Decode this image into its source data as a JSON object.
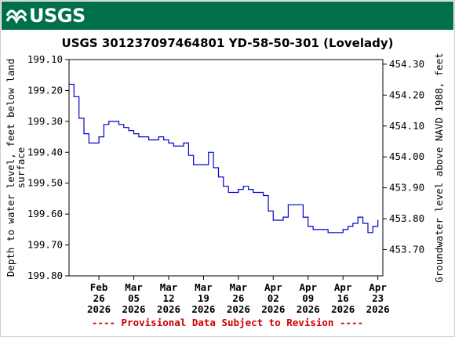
{
  "banner": {
    "logo_text": "USGS",
    "background": "#00704a"
  },
  "chart_data": {
    "type": "line",
    "title": "USGS 301237097464801 YD-58-50-301 (Lovelady)",
    "ylabel": "Depth to water level, feet below land surface",
    "ylabel_lines": [
      "Depth to water level, feet below land",
      "surface"
    ],
    "y2label": "Groundwater level above NAVD 1988, feet",
    "ylim": [
      199.1,
      199.8
    ],
    "y_inverted": true,
    "y_ticks": [
      "199.10",
      "199.20",
      "199.30",
      "199.40",
      "199.50",
      "199.60",
      "199.70",
      "199.80"
    ],
    "y2_ticks": [
      "454.30",
      "454.20",
      "454.10",
      "454.00",
      "453.90",
      "453.80",
      "453.70"
    ],
    "y2_tick_depths": [
      199.115,
      199.215,
      199.315,
      199.415,
      199.515,
      199.615,
      199.715
    ],
    "x_date_range": [
      "2026-02-20",
      "2026-04-24"
    ],
    "x_ticks": [
      {
        "date": "2026-02-26",
        "month": "Feb",
        "day": "26",
        "year": "2026"
      },
      {
        "date": "2026-03-05",
        "month": "Mar",
        "day": "05",
        "year": "2026"
      },
      {
        "date": "2026-03-12",
        "month": "Mar",
        "day": "12",
        "year": "2026"
      },
      {
        "date": "2026-03-19",
        "month": "Mar",
        "day": "19",
        "year": "2026"
      },
      {
        "date": "2026-03-26",
        "month": "Mar",
        "day": "26",
        "year": "2026"
      },
      {
        "date": "2026-04-02",
        "month": "Apr",
        "day": "02",
        "year": "2026"
      },
      {
        "date": "2026-04-09",
        "month": "Apr",
        "day": "09",
        "year": "2026"
      },
      {
        "date": "2026-04-16",
        "month": "Apr",
        "day": "16",
        "year": "2026"
      },
      {
        "date": "2026-04-23",
        "month": "Apr",
        "day": "23",
        "year": "2026"
      }
    ],
    "series": [
      {
        "color": "#0000cc",
        "points": [
          [
            "2026-02-20",
            199.18
          ],
          [
            "2026-02-21",
            199.22
          ],
          [
            "2026-02-22",
            199.29
          ],
          [
            "2026-02-23",
            199.34
          ],
          [
            "2026-02-24",
            199.37
          ],
          [
            "2026-02-25",
            199.37
          ],
          [
            "2026-02-26",
            199.35
          ],
          [
            "2026-02-27",
            199.31
          ],
          [
            "2026-02-28",
            199.3
          ],
          [
            "2026-03-01",
            199.3
          ],
          [
            "2026-03-02",
            199.31
          ],
          [
            "2026-03-03",
            199.32
          ],
          [
            "2026-03-04",
            199.33
          ],
          [
            "2026-03-05",
            199.34
          ],
          [
            "2026-03-06",
            199.35
          ],
          [
            "2026-03-07",
            199.35
          ],
          [
            "2026-03-08",
            199.36
          ],
          [
            "2026-03-09",
            199.36
          ],
          [
            "2026-03-10",
            199.35
          ],
          [
            "2026-03-11",
            199.36
          ],
          [
            "2026-03-12",
            199.37
          ],
          [
            "2026-03-13",
            199.38
          ],
          [
            "2026-03-14",
            199.38
          ],
          [
            "2026-03-15",
            199.37
          ],
          [
            "2026-03-16",
            199.41
          ],
          [
            "2026-03-17",
            199.44
          ],
          [
            "2026-03-18",
            199.44
          ],
          [
            "2026-03-19",
            199.44
          ],
          [
            "2026-03-20",
            199.4
          ],
          [
            "2026-03-21",
            199.45
          ],
          [
            "2026-03-22",
            199.48
          ],
          [
            "2026-03-23",
            199.51
          ],
          [
            "2026-03-24",
            199.53
          ],
          [
            "2026-03-25",
            199.53
          ],
          [
            "2026-03-26",
            199.52
          ],
          [
            "2026-03-27",
            199.51
          ],
          [
            "2026-03-28",
            199.52
          ],
          [
            "2026-03-29",
            199.53
          ],
          [
            "2026-03-30",
            199.53
          ],
          [
            "2026-03-31",
            199.54
          ],
          [
            "2026-04-01",
            199.59
          ],
          [
            "2026-04-02",
            199.62
          ],
          [
            "2026-04-03",
            199.62
          ],
          [
            "2026-04-04",
            199.61
          ],
          [
            "2026-04-05",
            199.57
          ],
          [
            "2026-04-06",
            199.57
          ],
          [
            "2026-04-07",
            199.57
          ],
          [
            "2026-04-08",
            199.61
          ],
          [
            "2026-04-09",
            199.64
          ],
          [
            "2026-04-10",
            199.65
          ],
          [
            "2026-04-11",
            199.65
          ],
          [
            "2026-04-12",
            199.65
          ],
          [
            "2026-04-13",
            199.66
          ],
          [
            "2026-04-14",
            199.66
          ],
          [
            "2026-04-15",
            199.66
          ],
          [
            "2026-04-16",
            199.65
          ],
          [
            "2026-04-17",
            199.64
          ],
          [
            "2026-04-18",
            199.63
          ],
          [
            "2026-04-19",
            199.61
          ],
          [
            "2026-04-20",
            199.63
          ],
          [
            "2026-04-21",
            199.66
          ],
          [
            "2026-04-22",
            199.64
          ],
          [
            "2026-04-23",
            199.62
          ]
        ]
      }
    ],
    "annotation": "---- Provisional Data Subject to Revision ----",
    "annotation_color": "#cc0000",
    "grid": false
  }
}
